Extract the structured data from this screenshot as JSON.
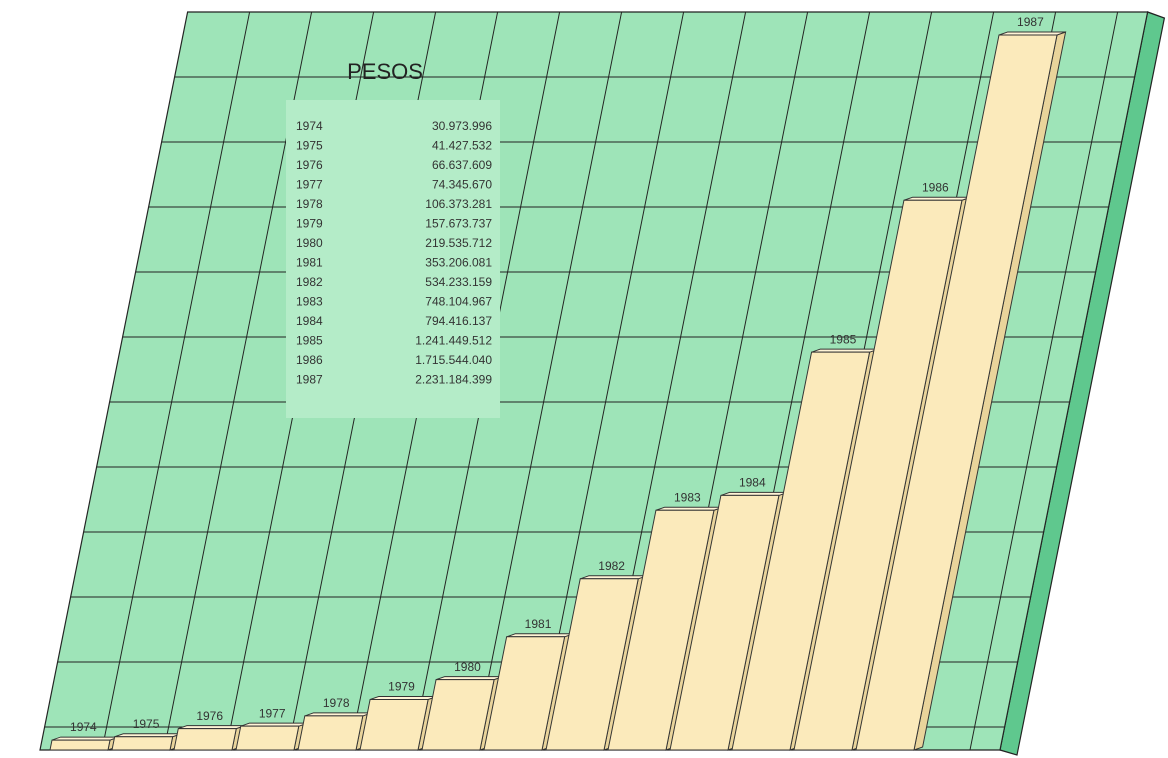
{
  "chart_data": {
    "type": "bar",
    "title": "PESOS",
    "categories": [
      "1974",
      "1975",
      "1976",
      "1977",
      "1978",
      "1979",
      "1980",
      "1981",
      "1982",
      "1983",
      "1984",
      "1985",
      "1986",
      "1987"
    ],
    "values": [
      30973996,
      41427532,
      66637609,
      74345670,
      106373281,
      157673737,
      219535712,
      353206081,
      534233159,
      748104967,
      794416137,
      1241449512,
      1715544040,
      2231184399
    ],
    "value_labels": [
      "30.973.996",
      "41.427.532",
      "66.637.609",
      "74.345.670",
      "106.373.281",
      "157.673.737",
      "219.535.712",
      "353.206.081",
      "534.233.159",
      "748.104.967",
      "794.416.137",
      "1.241.449.512",
      "1.715.544.040",
      "2.231.184.399"
    ],
    "color": "#fbeabb"
  }
}
